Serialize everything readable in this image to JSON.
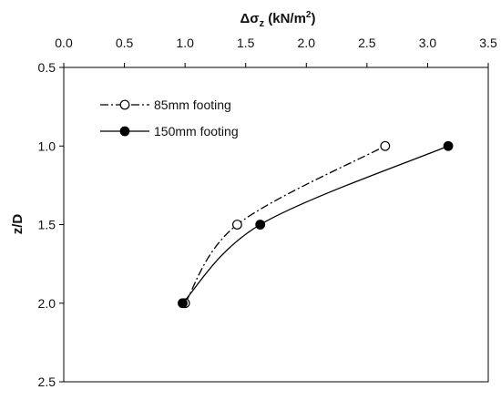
{
  "chart_data": {
    "type": "line",
    "x_label_parts": {
      "delta": "Δσ",
      "sub": "z",
      "unit_open": " (kN/m",
      "sup": "2",
      "unit_close": ")"
    },
    "ylabel": "z/D",
    "xlim": [
      0.0,
      3.5
    ],
    "ylim": [
      0.5,
      2.5
    ],
    "y_inverted": true,
    "x_axis_position": "top",
    "x_ticks": [
      "0.0",
      "0.5",
      "1.0",
      "1.5",
      "2.0",
      "2.5",
      "3.0",
      "3.5"
    ],
    "y_ticks": [
      "0.5",
      "1.0",
      "1.5",
      "2.0",
      "2.5"
    ],
    "legend_placement": "top-left",
    "grid": false,
    "series": [
      {
        "name": "85mm footing",
        "marker": "open-circle",
        "line_style": "dash-dot",
        "color": "#000000",
        "points": [
          {
            "x": 1.0,
            "z": 2.0
          },
          {
            "x": 1.43,
            "z": 1.5
          },
          {
            "x": 2.65,
            "z": 1.0
          }
        ]
      },
      {
        "name": "150mm footing",
        "marker": "filled-circle",
        "line_style": "solid",
        "color": "#000000",
        "points": [
          {
            "x": 0.98,
            "z": 2.0
          },
          {
            "x": 1.62,
            "z": 1.5
          },
          {
            "x": 3.17,
            "z": 1.0
          }
        ]
      }
    ]
  }
}
